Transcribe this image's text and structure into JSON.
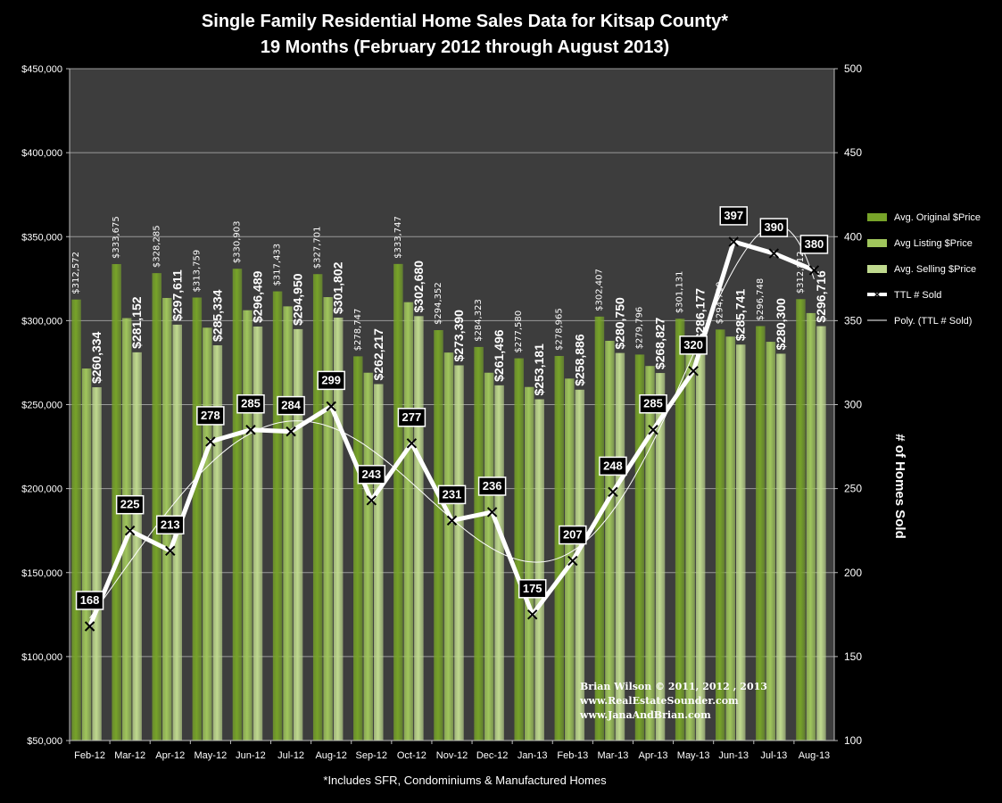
{
  "chart_data": {
    "type": "bar",
    "title": [
      "Single Family Residential Home Sales Data for Kitsap County*",
      "19 Months (February 2012 through August 2013)"
    ],
    "categories": [
      "Feb-12",
      "Mar-12",
      "Apr-12",
      "May-12",
      "Jun-12",
      "Jul-12",
      "Aug-12",
      "Sep-12",
      "Oct-12",
      "Nov-12",
      "Dec-12",
      "Jan-13",
      "Feb-13",
      "Mar-13",
      "Apr-13",
      "May-13",
      "Jun-13",
      "Jul-13",
      "Aug-13"
    ],
    "ylim": [
      50000,
      450000
    ],
    "y_ticks": [
      "$50,000",
      "$100,000",
      "$150,000",
      "$200,000",
      "$250,000",
      "$300,000",
      "$350,000",
      "$400,000",
      "$450,000"
    ],
    "y2lim": [
      100,
      500
    ],
    "y2_ticks": [
      "100",
      "150",
      "200",
      "250",
      "300",
      "350",
      "400",
      "450",
      "500"
    ],
    "y2label": "# of Homes Sold",
    "series": [
      {
        "name": "Avg. Original $Price",
        "color": "#77a329",
        "values": [
          312572,
          333675,
          328285,
          313759,
          330903,
          317433,
          327701,
          278747,
          333747,
          294352,
          284323,
          277580,
          278965,
          302407,
          279796,
          301131,
          294710,
          296748,
          312812
        ],
        "labels": [
          "$312,572",
          "$333,675",
          "$328,285",
          "$313,759",
          "$330,903",
          "$317,433",
          "$327,701",
          "$278,747",
          "$333,747",
          "$294,352",
          "$284,323",
          "$277,580",
          "$278,965",
          "$302,407",
          "$279,796",
          "$301,131",
          "$294,710",
          "$296,748",
          "$312,812"
        ]
      },
      {
        "name": "Avg Listing $Price",
        "color": "#a0c65c",
        "values": [
          271500,
          301500,
          313500,
          295800,
          306200,
          308500,
          314000,
          269000,
          311000,
          281000,
          269000,
          260500,
          265500,
          288000,
          273000,
          290500,
          290500,
          287400,
          304500
        ]
      },
      {
        "name": "Avg. Selling $Price",
        "color": "#bfd98e",
        "values": [
          260334,
          281152,
          297611,
          285334,
          296489,
          294950,
          301802,
          262217,
          302680,
          273390,
          261496,
          253181,
          258886,
          280750,
          268827,
          286177,
          285741,
          280300,
          296716
        ],
        "labels": [
          "$260,334",
          "$281,152",
          "$297,611",
          "$285,334",
          "$296,489",
          "$294,950",
          "$301,802",
          "$262,217",
          "$302,680",
          "$273,390",
          "$261,496",
          "$253,181",
          "$258,886",
          "$280,750",
          "$268,827",
          "$286,177",
          "$285,741",
          "$280,300",
          "$296,716"
        ]
      },
      {
        "name": "TTL # Sold",
        "axis": "right",
        "color": "#ffffff",
        "values": [
          168,
          225,
          213,
          278,
          285,
          284,
          299,
          243,
          277,
          231,
          236,
          175,
          207,
          248,
          285,
          320,
          397,
          390,
          380
        ]
      },
      {
        "name": "Poly. (TTL # Sold)",
        "axis": "right",
        "type": "trendline",
        "color": "#ffffff"
      }
    ],
    "legend_position": "right",
    "grid": true,
    "plot_background": "#3d3d3d"
  },
  "credits": [
    "Brian Wilson  © 2011, 2012 , 2013",
    "www.RealEstateSounder.com",
    "www.JanaAndBrian.com"
  ],
  "footnote": "*Includes SFR, Condominiums & Manufactured Homes"
}
